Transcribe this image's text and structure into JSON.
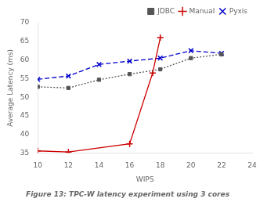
{
  "chart_data": {
    "type": "line",
    "title": "Figure 13: TPC-W latency experiment using 3 cores",
    "x_label": "WIPS",
    "y_label": "Average Latency (ms)",
    "series": [
      {
        "name": "JDBC",
        "color": "#555555",
        "marker": "square",
        "line_style": "dotted",
        "x": [
          10,
          12,
          14,
          16,
          18,
          20,
          22
        ],
        "values": [
          52.8,
          52.5,
          54.7,
          56.2,
          57.5,
          60.5,
          61.5
        ]
      },
      {
        "name": "Manual",
        "color": "#cc0000",
        "marker": "plus",
        "line_style": "solid",
        "x": [
          10,
          12,
          16,
          17.5,
          18
        ],
        "values": [
          35.6,
          35.3,
          37.5,
          56.5,
          66.0
        ]
      },
      {
        "name": "Pyxis",
        "color": "#0000cc",
        "marker": "x",
        "line_style": "dashed",
        "x": [
          10,
          12,
          14,
          16,
          18,
          20,
          22
        ],
        "values": [
          54.8,
          55.7,
          58.8,
          59.7,
          60.5,
          62.5,
          61.8
        ]
      }
    ],
    "xlim": [
      10,
      24
    ],
    "ylim": [
      35,
      70
    ],
    "xticks": [
      10,
      12,
      14,
      16,
      18,
      20,
      22,
      24
    ],
    "yticks": [
      35,
      40,
      45,
      50,
      55,
      60,
      65,
      70
    ],
    "grid": false,
    "legend": "upper right"
  }
}
